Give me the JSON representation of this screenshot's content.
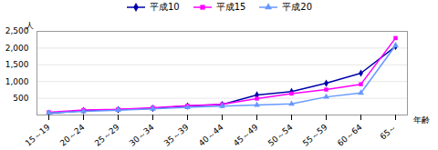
{
  "chart_data": {
    "type": "line",
    "x_label": "年齢",
    "y_label": "人",
    "categories": [
      "15～19",
      "20～24",
      "25～29",
      "30～34",
      "35～39",
      "40～44",
      "45～49",
      "50～54",
      "55～59",
      "60～64",
      "65～"
    ],
    "series": [
      {
        "name": "平成10",
        "color": "#0000AA",
        "marker": "diamond",
        "values": [
          50,
          130,
          160,
          200,
          270,
          310,
          600,
          700,
          950,
          1250,
          2050
        ]
      },
      {
        "name": "平成15",
        "color": "#FF00FF",
        "marker": "square",
        "values": [
          80,
          150,
          170,
          220,
          280,
          320,
          490,
          640,
          760,
          920,
          2300
        ]
      },
      {
        "name": "平成20",
        "color": "#6699FF",
        "marker": "triangle",
        "values": [
          60,
          110,
          145,
          185,
          230,
          265,
          300,
          330,
          540,
          660,
          2080
        ]
      }
    ],
    "ylim": [
      0,
      2500
    ],
    "yticks": [
      500,
      {
        "value": 1000,
        "label": "1,000"
      },
      {
        "value": 1500,
        "label": "1,500"
      },
      {
        "value": 2000,
        "label": "2,000"
      },
      {
        "value": 2500,
        "label": "2,500"
      }
    ],
    "grid": true,
    "legend": "upper right"
  }
}
